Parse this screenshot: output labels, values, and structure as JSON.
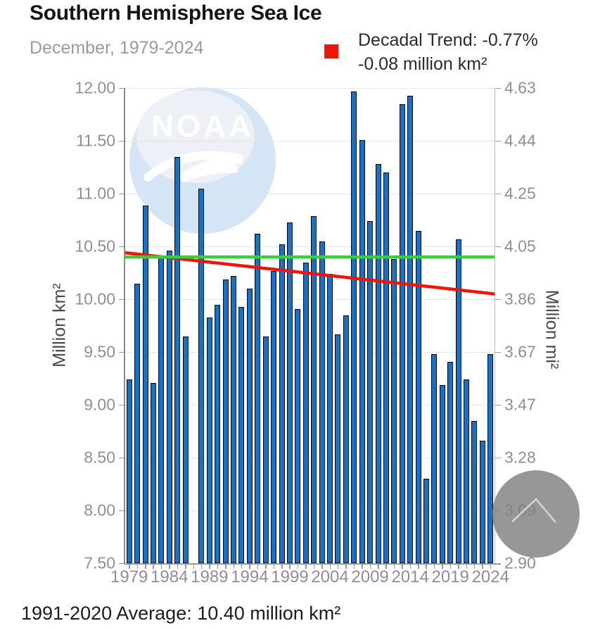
{
  "header": {
    "title": "Southern Hemisphere Sea Ice",
    "subtitle": "December, 1979-2024"
  },
  "legend": {
    "label_line1": "Decadal Trend: -0.77%",
    "label_line2": "-0.08 million km²",
    "marker_color": "#ef1508"
  },
  "footer": {
    "note": "1991-2020 Average: 10.40 million km²"
  },
  "watermark": {
    "text": "NOAA"
  },
  "scroll_button": {
    "icon": "chevron-up"
  },
  "chart_data": {
    "type": "bar",
    "title": "Southern Hemisphere Sea Ice",
    "subtitle": "December, 1979-2024",
    "x": [
      1979,
      1980,
      1981,
      1982,
      1983,
      1984,
      1985,
      1986,
      1987,
      1988,
      1989,
      1990,
      1991,
      1992,
      1993,
      1994,
      1995,
      1996,
      1997,
      1998,
      1999,
      2000,
      2001,
      2002,
      2003,
      2004,
      2005,
      2006,
      2007,
      2008,
      2009,
      2010,
      2011,
      2012,
      2013,
      2014,
      2015,
      2016,
      2017,
      2018,
      2019,
      2020,
      2021,
      2022,
      2023,
      2024
    ],
    "values": [
      9.24,
      10.15,
      10.89,
      9.21,
      10.41,
      10.46,
      11.35,
      9.65,
      null,
      11.05,
      9.83,
      9.95,
      10.19,
      10.22,
      9.93,
      10.1,
      10.62,
      9.65,
      10.27,
      10.52,
      10.73,
      9.91,
      10.35,
      10.79,
      10.55,
      10.24,
      9.67,
      9.85,
      11.97,
      11.51,
      10.74,
      11.28,
      11.2,
      10.38,
      11.85,
      11.93,
      10.65,
      8.3,
      9.48,
      9.19,
      9.41,
      10.57,
      9.24,
      8.85,
      8.66,
      9.48
    ],
    "missing_years": [
      1987
    ],
    "ylabel_left": "Million km²",
    "ylabel_right": "Million mi²",
    "ylim_left": [
      7.5,
      12.0
    ],
    "ylim_right": [
      2.9,
      4.63
    ],
    "yticks_left": [
      "12.00",
      "11.50",
      "11.00",
      "10.50",
      "10.00",
      "9.50",
      "9.00",
      "8.50",
      "8.00",
      "7.50"
    ],
    "ytick_values_left": [
      12.0,
      11.5,
      11.0,
      10.5,
      10.0,
      9.5,
      9.0,
      8.5,
      8.0,
      7.5
    ],
    "yticks_right": [
      "4.63",
      "4.44",
      "4.25",
      "4.05",
      "3.86",
      "3.67",
      "3.47",
      "3.28",
      "3.09",
      "2.90"
    ],
    "xticks": [
      "1979",
      "1984",
      "1989",
      "1994",
      "1999",
      "2004",
      "2009",
      "2014",
      "2019",
      "2024"
    ],
    "xtick_years": [
      1979,
      1984,
      1989,
      1994,
      1999,
      2004,
      2009,
      2014,
      2019,
      2024
    ],
    "grid": true,
    "legend_position": "top-right",
    "bar_color": "#1373cc",
    "bar_border_color": "#000000",
    "average_line": {
      "value": 10.4,
      "color": "#38cf38",
      "label": "1991-2020 Average: 10.40 million km²"
    },
    "trend_line": {
      "start_value": 10.44,
      "end_value": 10.05,
      "color": "#ef1508",
      "label": "Decadal Trend: -0.77% / -0.08 million km² per decade"
    }
  }
}
